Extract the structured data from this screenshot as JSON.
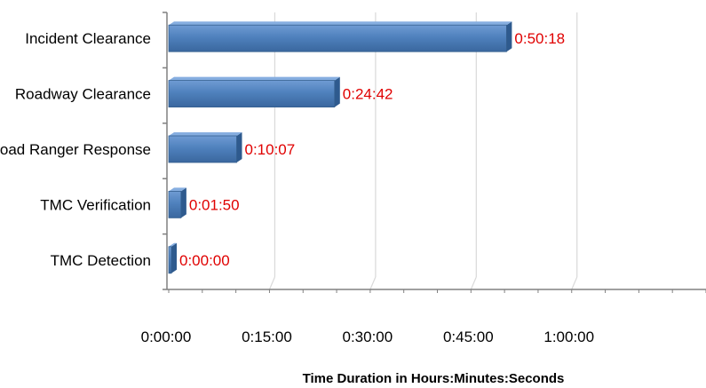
{
  "chart_data": {
    "type": "bar",
    "orientation": "horizontal",
    "categories": [
      "Incident Clearance",
      "Roadway Clearance",
      "Road Ranger Response",
      "TMC Verification",
      "TMC Detection"
    ],
    "values": [
      3018,
      1482,
      607,
      110,
      0
    ],
    "data_labels": [
      "0:50:18",
      "0:24:42",
      "0:10:07",
      "0:01:50",
      "0:00:00"
    ],
    "xticks": [
      0,
      900,
      1800,
      2700,
      3600
    ],
    "xtick_labels": [
      "0:00:00",
      "0:15:00",
      "0:30:00",
      "0:45:00",
      "1:00:00"
    ],
    "xlim": [
      0,
      4800
    ],
    "xlabel": "Time Duration  in Hours:Minutes:Seconds",
    "ylabel": "",
    "title": "",
    "grid": true,
    "legend": "none",
    "colors": {
      "bar": "#4f81bd",
      "bar_dark": "#2e5a8e",
      "label": "#e00000",
      "grid": "#d9d9d9",
      "axis": "#808080"
    }
  }
}
